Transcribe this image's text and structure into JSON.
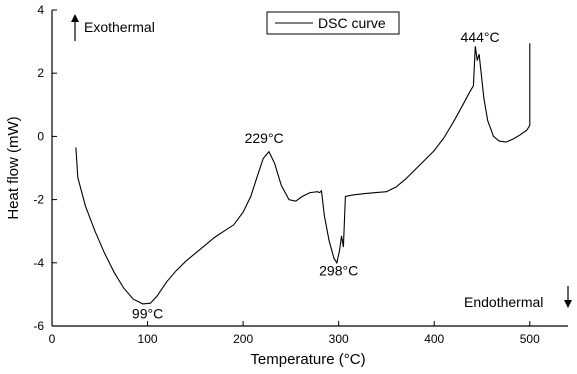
{
  "chart_data": {
    "type": "line",
    "xlabel": "Temperature (°C)",
    "ylabel": "Heat flow (mW)",
    "xlim": [
      0,
      540
    ],
    "ylim": [
      -6,
      4
    ],
    "xticks": [
      0,
      100,
      200,
      300,
      400,
      500
    ],
    "yticks": [
      -6,
      -4,
      -2,
      0,
      2,
      4
    ],
    "grid": false,
    "legend_position": "top-center",
    "series": [
      {
        "name": "DSC curve",
        "color": "#000000",
        "points": [
          [
            25,
            -0.35
          ],
          [
            27,
            -1.3
          ],
          [
            35,
            -2.2
          ],
          [
            45,
            -3.0
          ],
          [
            55,
            -3.7
          ],
          [
            65,
            -4.3
          ],
          [
            75,
            -4.8
          ],
          [
            85,
            -5.15
          ],
          [
            95,
            -5.3
          ],
          [
            103,
            -5.28
          ],
          [
            110,
            -5.05
          ],
          [
            120,
            -4.6
          ],
          [
            130,
            -4.25
          ],
          [
            140,
            -3.95
          ],
          [
            150,
            -3.7
          ],
          [
            160,
            -3.45
          ],
          [
            170,
            -3.2
          ],
          [
            180,
            -3.0
          ],
          [
            190,
            -2.8
          ],
          [
            200,
            -2.4
          ],
          [
            208,
            -1.9
          ],
          [
            215,
            -1.25
          ],
          [
            221,
            -0.7
          ],
          [
            227,
            -0.48
          ],
          [
            233,
            -0.85
          ],
          [
            240,
            -1.55
          ],
          [
            248,
            -2.0
          ],
          [
            255,
            -2.05
          ],
          [
            262,
            -1.9
          ],
          [
            270,
            -1.78
          ],
          [
            278,
            -1.75
          ],
          [
            280,
            -1.78
          ],
          [
            282,
            -1.72
          ],
          [
            285,
            -2.5
          ],
          [
            290,
            -3.3
          ],
          [
            295,
            -3.85
          ],
          [
            298,
            -4.0
          ],
          [
            301,
            -3.6
          ],
          [
            303,
            -3.15
          ],
          [
            305,
            -3.5
          ],
          [
            307,
            -1.9
          ],
          [
            315,
            -1.85
          ],
          [
            330,
            -1.8
          ],
          [
            350,
            -1.75
          ],
          [
            360,
            -1.6
          ],
          [
            370,
            -1.35
          ],
          [
            380,
            -1.05
          ],
          [
            390,
            -0.75
          ],
          [
            400,
            -0.45
          ],
          [
            410,
            -0.05
          ],
          [
            420,
            0.45
          ],
          [
            430,
            1.0
          ],
          [
            437,
            1.4
          ],
          [
            441,
            1.6
          ],
          [
            443,
            2.85
          ],
          [
            445,
            2.4
          ],
          [
            447,
            2.6
          ],
          [
            449,
            2.05
          ],
          [
            452,
            1.2
          ],
          [
            456,
            0.5
          ],
          [
            462,
            0.0
          ],
          [
            468,
            -0.15
          ],
          [
            475,
            -0.18
          ],
          [
            483,
            -0.08
          ],
          [
            490,
            0.05
          ],
          [
            497,
            0.2
          ],
          [
            500,
            0.35
          ],
          [
            500,
            2.95
          ]
        ]
      }
    ],
    "annotations": [
      {
        "text": "Exothermal",
        "arrow": "up",
        "position": "top-left"
      },
      {
        "text": "Endothermal",
        "arrow": "down",
        "position": "bottom-right"
      }
    ],
    "peak_labels": [
      {
        "text": "99°C",
        "x": 100,
        "y": -5.6
      },
      {
        "text": "229°C",
        "x": 222,
        "y": -0.05
      },
      {
        "text": "298°C",
        "x": 300,
        "y": -4.25
      },
      {
        "text": "444°C",
        "x": 448,
        "y": 3.15
      }
    ]
  }
}
